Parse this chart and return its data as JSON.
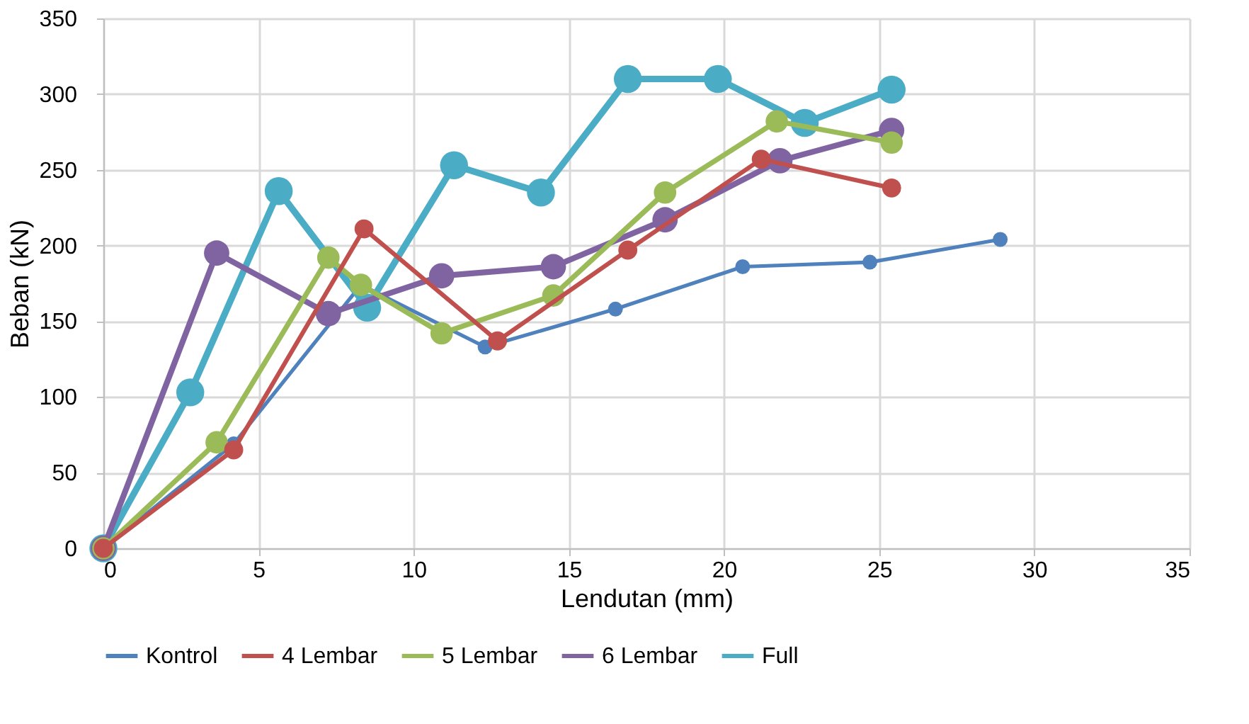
{
  "chart_data": {
    "type": "line",
    "xlabel": "Lendutan (mm)",
    "ylabel": "Beban (kN)",
    "xlim": [
      0,
      35
    ],
    "xticks": [
      0,
      5,
      10,
      15,
      20,
      25,
      30,
      35
    ],
    "ylim": [
      0,
      350
    ],
    "yticks": [
      0,
      50,
      100,
      150,
      200,
      250,
      300,
      350
    ],
    "grid": true,
    "legend": "bottom",
    "marker": "circle",
    "line_style": "solid",
    "series": [
      {
        "name": "Kontrol",
        "color": "#4f81bd",
        "x": [
          0,
          4.2,
          8.3,
          12.3,
          16.5,
          20.6,
          24.7,
          28.9
        ],
        "values": [
          0,
          69,
          174,
          133,
          158,
          186,
          189,
          204
        ]
      },
      {
        "name": "4 Lembar",
        "color": "#c0504d",
        "x": [
          0,
          4.2,
          8.4,
          12.7,
          16.9,
          21.2,
          25.4
        ],
        "values": [
          0,
          65,
          211,
          137,
          197,
          257,
          238
        ]
      },
      {
        "name": "5 Lembar",
        "color": "#9bbb59",
        "x": [
          0,
          3.65,
          7.25,
          8.3,
          10.9,
          14.5,
          18.1,
          21.7,
          25.4
        ],
        "values": [
          0,
          70,
          192,
          174,
          142,
          167,
          235,
          282,
          268
        ]
      },
      {
        "name": "6 Lembar",
        "color": "#8064a2",
        "x": [
          0,
          3.65,
          7.25,
          10.9,
          14.5,
          18.1,
          21.8,
          25.4
        ],
        "values": [
          0,
          195,
          155,
          180,
          186,
          217,
          256,
          276
        ]
      },
      {
        "name": "Full",
        "color": "#4bacc6",
        "x": [
          0,
          2.8,
          5.65,
          8.5,
          11.3,
          14.1,
          16.9,
          19.8,
          22.6,
          25.4
        ],
        "values": [
          0,
          103,
          236,
          159,
          253,
          235,
          310,
          310,
          281,
          303
        ]
      }
    ]
  }
}
